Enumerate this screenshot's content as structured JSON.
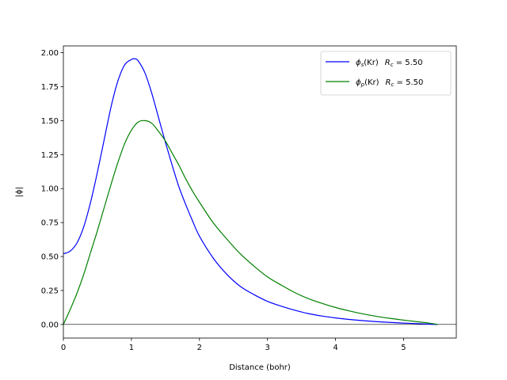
{
  "chart_data": {
    "type": "line",
    "title": "",
    "xlabel": "Distance (bohr)",
    "ylabel": "|ϕ|",
    "xlim": [
      0,
      5.775
    ],
    "ylim": [
      -0.1,
      2.05
    ],
    "xticks": [
      0,
      1,
      2,
      3,
      4,
      5
    ],
    "xtick_labels": [
      "0",
      "1",
      "2",
      "3",
      "4",
      "5"
    ],
    "yticks": [
      0.0,
      0.25,
      0.5,
      0.75,
      1.0,
      1.25,
      1.5,
      1.75,
      2.0
    ],
    "ytick_labels": [
      "0.00",
      "0.25",
      "0.50",
      "0.75",
      "1.00",
      "1.25",
      "1.50",
      "1.75",
      "2.00"
    ],
    "hline": 0,
    "legend_position": "top-right",
    "series": [
      {
        "name": "ϕs(Kr)  Rc = 5.50",
        "legend": {
          "phi": "ϕ",
          "sub": "s",
          "element": "(Kr)",
          "rc": "R",
          "rc_sub": "c",
          "rc_value": " = 5.50"
        },
        "color": "#0000ff",
        "x": [
          0,
          0.1,
          0.2,
          0.3,
          0.4,
          0.5,
          0.6,
          0.7,
          0.8,
          0.9,
          1.0,
          1.05,
          1.1,
          1.2,
          1.3,
          1.4,
          1.5,
          1.6,
          1.7,
          1.8,
          1.9,
          2.0,
          2.2,
          2.4,
          2.6,
          2.8,
          3.0,
          3.2,
          3.4,
          3.6,
          3.8,
          4.0,
          4.2,
          4.4,
          4.6,
          4.8,
          5.0,
          5.2,
          5.4,
          5.5
        ],
        "values": [
          0.52,
          0.54,
          0.6,
          0.72,
          0.9,
          1.12,
          1.36,
          1.6,
          1.79,
          1.91,
          1.95,
          1.955,
          1.94,
          1.85,
          1.7,
          1.52,
          1.34,
          1.17,
          1.01,
          0.88,
          0.76,
          0.65,
          0.49,
          0.37,
          0.28,
          0.22,
          0.17,
          0.135,
          0.105,
          0.08,
          0.062,
          0.048,
          0.037,
          0.028,
          0.021,
          0.015,
          0.01,
          0.006,
          0.002,
          0.0
        ]
      },
      {
        "name": "ϕp(Kr)  Rc = 5.50",
        "legend": {
          "phi": "ϕ",
          "sub": "p",
          "element": "(Kr)",
          "rc": "R",
          "rc_sub": "c",
          "rc_value": " = 5.50"
        },
        "color": "#008000",
        "x": [
          0,
          0.1,
          0.2,
          0.3,
          0.4,
          0.5,
          0.6,
          0.7,
          0.8,
          0.9,
          1.0,
          1.1,
          1.2,
          1.3,
          1.4,
          1.5,
          1.6,
          1.7,
          1.8,
          1.9,
          2.0,
          2.2,
          2.4,
          2.6,
          2.8,
          3.0,
          3.2,
          3.4,
          3.6,
          3.8,
          4.0,
          4.2,
          4.4,
          4.6,
          4.8,
          5.0,
          5.2,
          5.4,
          5.5
        ],
        "values": [
          0.0,
          0.11,
          0.23,
          0.37,
          0.53,
          0.69,
          0.86,
          1.03,
          1.19,
          1.33,
          1.43,
          1.49,
          1.5,
          1.48,
          1.42,
          1.35,
          1.26,
          1.17,
          1.07,
          0.98,
          0.9,
          0.75,
          0.63,
          0.52,
          0.43,
          0.35,
          0.29,
          0.235,
          0.19,
          0.155,
          0.125,
          0.1,
          0.078,
          0.06,
          0.045,
          0.032,
          0.02,
          0.008,
          0.0
        ]
      }
    ]
  }
}
